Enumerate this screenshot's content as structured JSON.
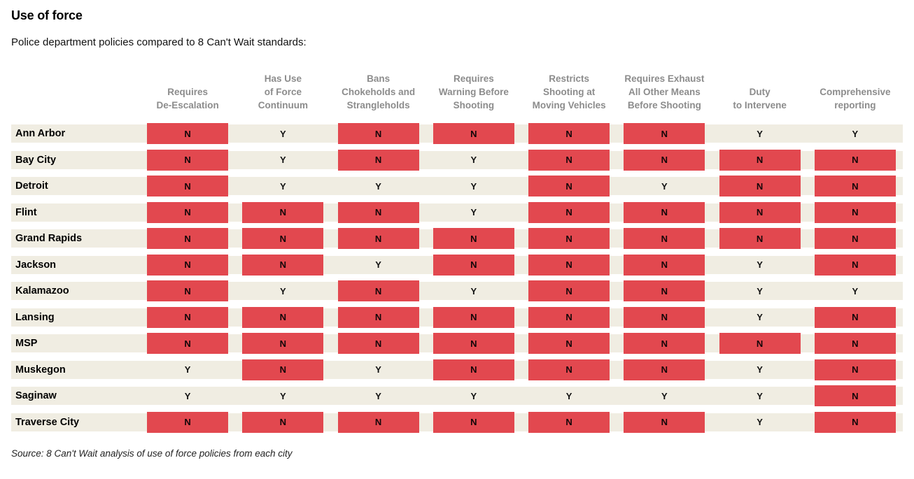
{
  "title": "Use of force",
  "subtitle": "Police department policies compared to 8 Can't Wait standards:",
  "source": "Source: 8 Can't Wait analysis of use of force policies from each city",
  "colors": {
    "no_cell_red": "#e2484f",
    "row_band_cream": "#f0ede2",
    "header_gray": "#8c8c8c",
    "text_black": "#000000",
    "background": "#ffffff"
  },
  "chart_data": {
    "type": "table",
    "title": "Use of force",
    "subtitle": "Police department policies compared to 8 Can't Wait standards:",
    "source": "Source: 8 Can't Wait analysis of use of force policies from each city",
    "value_encoding": "Y = meets standard (plain text on cream band); N = does not meet standard (highlighted with red block)",
    "columns": [
      {
        "id": "requires-de-escalation",
        "lines": [
          "Requires",
          "De-Escalation"
        ]
      },
      {
        "id": "use-of-force-continuum",
        "lines": [
          "Has Use",
          "of Force",
          "Continuum"
        ]
      },
      {
        "id": "bans-chokeholds-strangleholds",
        "lines": [
          "Bans",
          "Chokeholds and",
          "Strangleholds"
        ]
      },
      {
        "id": "warning-before-shooting",
        "lines": [
          "Requires",
          "Warning Before",
          "Shooting"
        ]
      },
      {
        "id": "restricts-shooting-moving-vehicles",
        "lines": [
          "Restricts",
          "Shooting at",
          "Moving Vehicles"
        ]
      },
      {
        "id": "exhaust-all-other-means",
        "lines": [
          "Requires Exhaust",
          "All Other Means",
          "Before Shooting"
        ]
      },
      {
        "id": "duty-to-intervene",
        "lines": [
          "Duty",
          "to Intervene"
        ]
      },
      {
        "id": "comprehensive-reporting",
        "lines": [
          "Comprehensive",
          "reporting"
        ]
      }
    ],
    "rows": [
      {
        "city": "Ann Arbor",
        "values": [
          "N",
          "Y",
          "N",
          "N",
          "N",
          "N",
          "Y",
          "Y"
        ]
      },
      {
        "city": "Bay City",
        "values": [
          "N",
          "Y",
          "N",
          "Y",
          "N",
          "N",
          "N",
          "N"
        ]
      },
      {
        "city": "Detroit",
        "values": [
          "N",
          "Y",
          "Y",
          "Y",
          "N",
          "Y",
          "N",
          "N"
        ]
      },
      {
        "city": "Flint",
        "values": [
          "N",
          "N",
          "N",
          "Y",
          "N",
          "N",
          "N",
          "N"
        ]
      },
      {
        "city": "Grand Rapids",
        "values": [
          "N",
          "N",
          "N",
          "N",
          "N",
          "N",
          "N",
          "N"
        ]
      },
      {
        "city": "Jackson",
        "values": [
          "N",
          "N",
          "Y",
          "N",
          "N",
          "N",
          "Y",
          "N"
        ]
      },
      {
        "city": "Kalamazoo",
        "values": [
          "N",
          "Y",
          "N",
          "Y",
          "N",
          "N",
          "Y",
          "Y"
        ]
      },
      {
        "city": "Lansing",
        "values": [
          "N",
          "N",
          "N",
          "N",
          "N",
          "N",
          "Y",
          "N"
        ]
      },
      {
        "city": "MSP",
        "values": [
          "N",
          "N",
          "N",
          "N",
          "N",
          "N",
          "N",
          "N"
        ]
      },
      {
        "city": "Muskegon",
        "values": [
          "Y",
          "N",
          "Y",
          "N",
          "N",
          "N",
          "Y",
          "N"
        ]
      },
      {
        "city": "Saginaw",
        "values": [
          "Y",
          "Y",
          "Y",
          "Y",
          "Y",
          "Y",
          "Y",
          "N"
        ]
      },
      {
        "city": "Traverse City",
        "values": [
          "N",
          "N",
          "N",
          "N",
          "N",
          "N",
          "Y",
          "N"
        ]
      }
    ]
  }
}
